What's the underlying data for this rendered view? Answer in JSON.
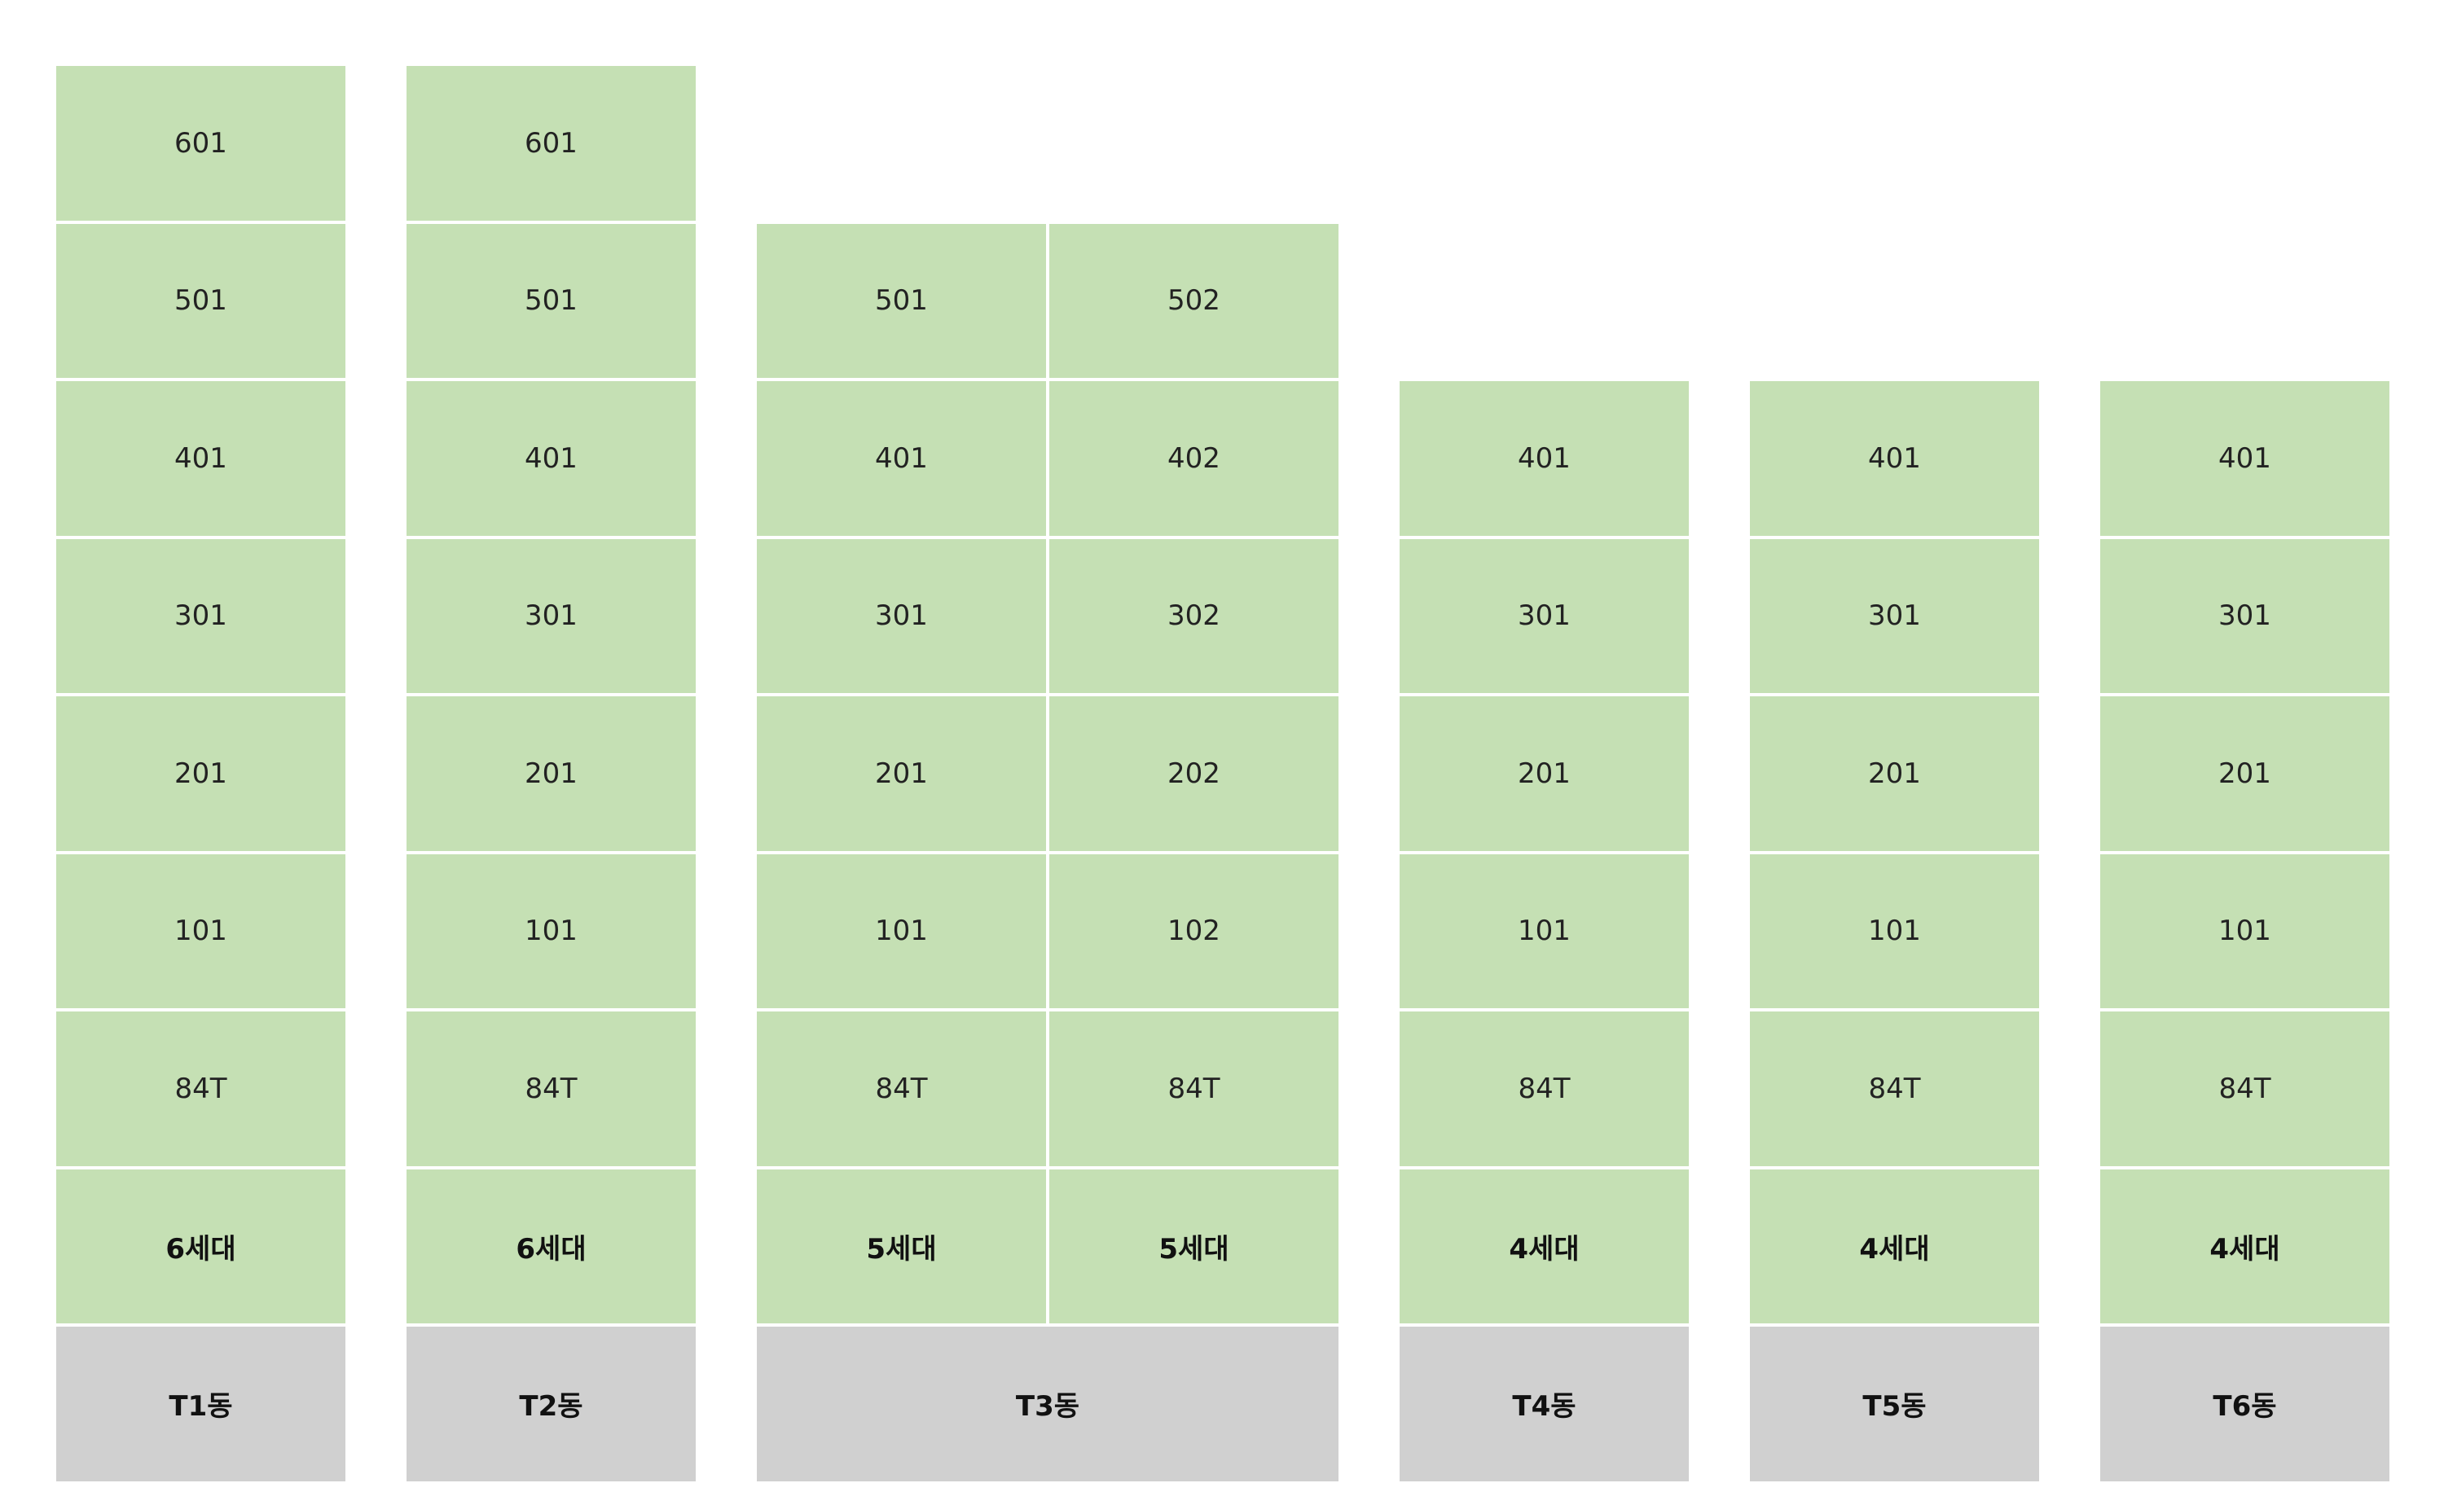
{
  "buildings": [
    {
      "name": "T1동",
      "lines": [
        {
          "units": [
            "601",
            "501",
            "401",
            "301",
            "201",
            "101",
            "84T"
          ],
          "total": "6세대"
        }
      ]
    },
    {
      "name": "T2동",
      "lines": [
        {
          "units": [
            "601",
            "501",
            "401",
            "301",
            "201",
            "101",
            "84T"
          ],
          "total": "6세대"
        }
      ]
    },
    {
      "name": "T3동",
      "lines": [
        {
          "units": [
            "501",
            "401",
            "301",
            "201",
            "101",
            "84T"
          ],
          "total": "5세대"
        },
        {
          "units": [
            "502",
            "402",
            "302",
            "202",
            "102",
            "84T"
          ],
          "total": "5세대"
        }
      ]
    },
    {
      "name": "T4동",
      "lines": [
        {
          "units": [
            "401",
            "301",
            "201",
            "101",
            "84T"
          ],
          "total": "4세대"
        }
      ]
    },
    {
      "name": "T5동",
      "lines": [
        {
          "units": [
            "401",
            "301",
            "201",
            "101",
            "84T"
          ],
          "total": "4세대"
        }
      ]
    },
    {
      "name": "T6동",
      "lines": [
        {
          "units": [
            "401",
            "301",
            "201",
            "101",
            "84T"
          ],
          "total": "4세대"
        }
      ]
    }
  ]
}
